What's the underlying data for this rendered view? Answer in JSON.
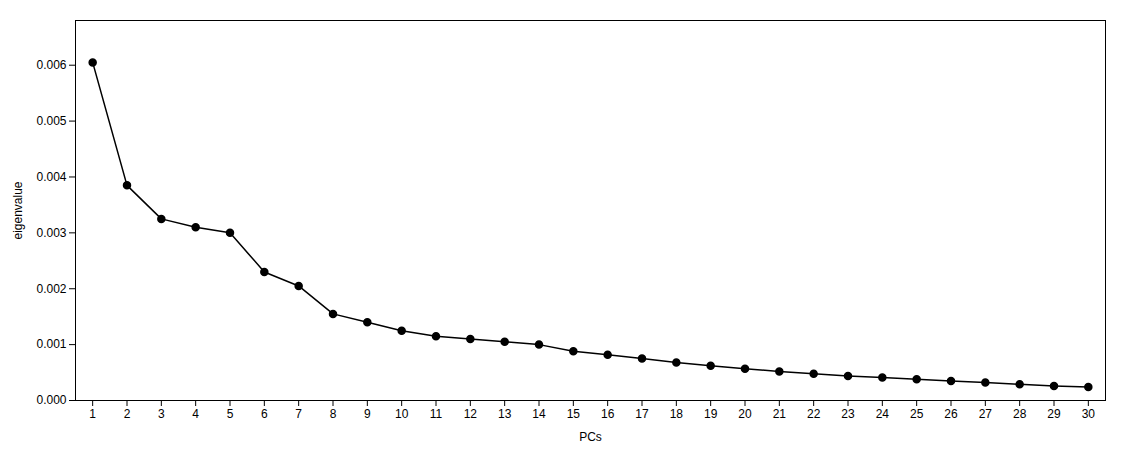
{
  "chart_data": {
    "type": "line",
    "xlabel": "PCs",
    "ylabel": "eigenvalue",
    "x": [
      1,
      2,
      3,
      4,
      5,
      6,
      7,
      8,
      9,
      10,
      11,
      12,
      13,
      14,
      15,
      16,
      17,
      18,
      19,
      20,
      21,
      22,
      23,
      24,
      25,
      26,
      27,
      28,
      29,
      30
    ],
    "values": [
      0.00605,
      0.00385,
      0.00325,
      0.0031,
      0.003,
      0.0023,
      0.00205,
      0.00155,
      0.0014,
      0.00125,
      0.00115,
      0.0011,
      0.00105,
      0.001,
      0.00088,
      0.00082,
      0.00075,
      0.00068,
      0.00062,
      0.00057,
      0.00052,
      0.00048,
      0.00044,
      0.00041,
      0.00038,
      0.00035,
      0.00032,
      0.00029,
      0.00026,
      0.00024
    ],
    "color": "#000000",
    "marker": "circle",
    "xlim": [
      0.5,
      30.5
    ],
    "xticks": [
      1,
      2,
      3,
      4,
      5,
      6,
      7,
      8,
      9,
      10,
      11,
      12,
      13,
      14,
      15,
      16,
      17,
      18,
      19,
      20,
      21,
      22,
      23,
      24,
      25,
      26,
      27,
      28,
      29,
      30
    ],
    "ylim": [
      0,
      0.0068
    ],
    "yticks": [
      {
        "value": 0,
        "label": "0.000"
      },
      0.001,
      0.002,
      0.003,
      0.004,
      0.005,
      0.006
    ]
  }
}
